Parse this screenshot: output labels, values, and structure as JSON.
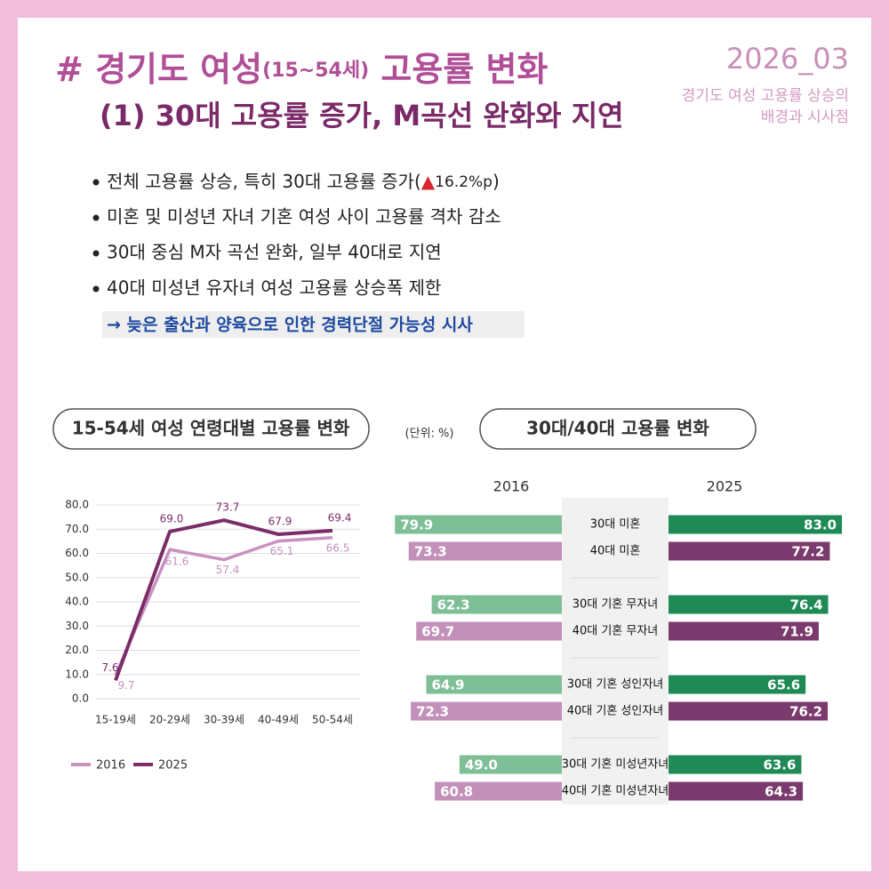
{
  "header": {
    "title_main": "# 경기도 여성",
    "title_age": "(15~54세)",
    "title_end": " 고용률 변화",
    "subtitle": "(1) 30대 고용률 증가, M곡선 완화와 지연",
    "issue": "2026_03",
    "series_title": [
      "경기도 여성 고용률 상승의",
      "배경과 시사점"
    ]
  },
  "bullets": [
    "전체 고용률 상승, 특히 30대 고용률 증가(",
    "미혼 및 미성년 자녀 기혼 여성 사이 고용률 격차 감소",
    "30대 중심 M자 곡선 완화, 일부 40대로 지연",
    "40대 미성년 유자녀 여성 고용률 상승폭 제한"
  ],
  "bullet_highlight": {
    "mark": "▲",
    "text": "16.2%p",
    "end": ")"
  },
  "conclusion": "→ 늦은 출산과 양육으로 인한 경력단절 가능성 시사",
  "unit": "(단위: %)",
  "chart_data": [
    {
      "type": "line",
      "title": "15-54세 여성 연령대별 고용률 변화",
      "categories": [
        "15-19세",
        "20-29세",
        "30-39세",
        "40-49세",
        "50-54세"
      ],
      "series": [
        {
          "name": "2016",
          "color": "#c792bf",
          "values": [
            9.7,
            61.6,
            57.4,
            65.1,
            66.5
          ],
          "value_labels": [
            "9.7",
            "61.6",
            "57.4",
            "65.1",
            "66.5"
          ]
        },
        {
          "name": "2025",
          "color": "#7b2d68",
          "values": [
            7.6,
            69.0,
            73.7,
            67.9,
            69.4
          ],
          "value_labels": [
            "7.6",
            "69.0",
            "73.7",
            "67.9",
            "69.4"
          ]
        }
      ],
      "ylim": [
        0,
        80
      ],
      "yticks": [
        {
          "value": 0,
          "label": "0.0"
        },
        {
          "value": 10,
          "label": "10.0"
        },
        {
          "value": 20,
          "label": "20.0"
        },
        {
          "value": 30,
          "label": "30.0"
        },
        {
          "value": 40,
          "label": "40.0"
        },
        {
          "value": 50,
          "label": "50.0"
        },
        {
          "value": 60,
          "label": "60.0"
        },
        {
          "value": 70,
          "label": "70.0"
        },
        {
          "value": 80,
          "label": "80.0"
        }
      ],
      "grid": true,
      "legend": "bottom"
    },
    {
      "type": "diverging_bar",
      "title": "30대/40대 고용률 변화",
      "categories": [
        "30대 미혼",
        "40대 미혼",
        "30대 기혼 무자녀",
        "40대 기혼 무자녀",
        "30대 기혼 성인자녀",
        "40대 기혼 성인자녀",
        "30대 기혼 미성년자녀",
        "40대 기혼 미성년자녀"
      ],
      "series": [
        {
          "name": "2016",
          "colors": [
            "#7fbf98",
            "#c290b9",
            "#7fbf98",
            "#c290b9",
            "#7fbf98",
            "#c290b9",
            "#7fbf98",
            "#c290b9"
          ],
          "values": [
            79.9,
            73.3,
            62.3,
            69.7,
            64.9,
            72.3,
            49.0,
            60.8
          ],
          "value_labels": [
            "79.9",
            "73.3",
            "62.3",
            "69.7",
            "64.9",
            "72.3",
            "49.0",
            "60.8"
          ]
        },
        {
          "name": "2025",
          "colors": [
            "#1f8a56",
            "#7b3a6d",
            "#1f8a56",
            "#7b3a6d",
            "#1f8a56",
            "#7b3a6d",
            "#1f8a56",
            "#7b3a6d"
          ],
          "values": [
            83.0,
            77.2,
            76.4,
            71.9,
            65.6,
            76.2,
            63.6,
            64.3
          ],
          "value_labels": [
            "83.0",
            "77.2",
            "76.4",
            "71.9",
            "65.6",
            "76.2",
            "63.6",
            "64.3"
          ]
        }
      ]
    }
  ]
}
